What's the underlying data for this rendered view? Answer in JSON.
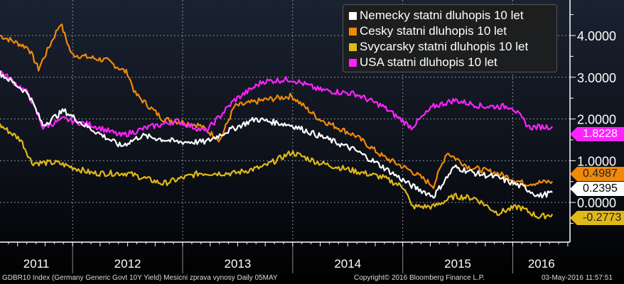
{
  "chart_data": {
    "type": "line",
    "title": "",
    "xlabel": "",
    "ylabel": "",
    "xlim": [
      2011.34,
      2016.52
    ],
    "ylim": [
      -0.95,
      4.85
    ],
    "grid": true,
    "legend_position": "top-right",
    "y_ticks": [
      "4.0000",
      "3.0000",
      "2.0000",
      "1.0000",
      "0.0000"
    ],
    "y_tick_values": [
      4,
      3,
      2,
      1,
      0
    ],
    "x_tick_labels": [
      "2011",
      "2012",
      "2013",
      "2014",
      "2015",
      "2016"
    ],
    "year_boundaries": [
      2012,
      2013,
      2014,
      2015,
      2016
    ],
    "series": [
      {
        "name": "Nemecky statni dluhopis 10 let",
        "color": "#ffffff",
        "last": "0.2395",
        "last_value": 0.2395,
        "points": [
          [
            2011.34,
            3.1
          ],
          [
            2011.6,
            2.6
          ],
          [
            2011.73,
            1.85
          ],
          [
            2011.92,
            2.2
          ],
          [
            2012.11,
            1.85
          ],
          [
            2012.44,
            1.35
          ],
          [
            2012.63,
            1.6
          ],
          [
            2012.95,
            1.45
          ],
          [
            2013.21,
            1.45
          ],
          [
            2013.4,
            1.7
          ],
          [
            2013.66,
            2.0
          ],
          [
            2013.99,
            1.85
          ],
          [
            2014.24,
            1.6
          ],
          [
            2014.57,
            1.25
          ],
          [
            2014.82,
            0.85
          ],
          [
            2015.08,
            0.4
          ],
          [
            2015.28,
            0.15
          ],
          [
            2015.47,
            0.85
          ],
          [
            2015.66,
            0.7
          ],
          [
            2015.86,
            0.6
          ],
          [
            2016.11,
            0.35
          ],
          [
            2016.24,
            0.15
          ],
          [
            2016.36,
            0.24
          ]
        ]
      },
      {
        "name": "Cesky statni dluhopis 10 let",
        "color": "#f0890a",
        "last": "0.4987",
        "last_value": 0.4987,
        "points": [
          [
            2011.34,
            4.0
          ],
          [
            2011.6,
            3.7
          ],
          [
            2011.69,
            3.2
          ],
          [
            2011.89,
            4.3
          ],
          [
            2011.99,
            3.55
          ],
          [
            2012.31,
            3.4
          ],
          [
            2012.5,
            3.1
          ],
          [
            2012.57,
            2.6
          ],
          [
            2012.82,
            2.0
          ],
          [
            2013.15,
            1.85
          ],
          [
            2013.34,
            1.5
          ],
          [
            2013.47,
            2.3
          ],
          [
            2013.73,
            2.45
          ],
          [
            2013.99,
            2.55
          ],
          [
            2014.24,
            2.0
          ],
          [
            2014.57,
            1.6
          ],
          [
            2014.82,
            1.1
          ],
          [
            2015.08,
            0.75
          ],
          [
            2015.28,
            0.4
          ],
          [
            2015.4,
            1.2
          ],
          [
            2015.6,
            0.85
          ],
          [
            2015.86,
            0.7
          ],
          [
            2016.11,
            0.45
          ],
          [
            2016.36,
            0.5
          ]
        ]
      },
      {
        "name": "Svycarsky statni dluhopis 10 let",
        "color": "#e0b818",
        "last": "-0.2773",
        "last_value": -0.2773,
        "points": [
          [
            2011.34,
            1.85
          ],
          [
            2011.53,
            1.5
          ],
          [
            2011.63,
            0.95
          ],
          [
            2011.86,
            0.95
          ],
          [
            2012.18,
            0.7
          ],
          [
            2012.5,
            0.7
          ],
          [
            2012.82,
            0.45
          ],
          [
            2013.15,
            0.7
          ],
          [
            2013.47,
            0.7
          ],
          [
            2013.73,
            0.85
          ],
          [
            2013.99,
            1.2
          ],
          [
            2014.24,
            0.95
          ],
          [
            2014.57,
            0.75
          ],
          [
            2014.82,
            0.6
          ],
          [
            2015.02,
            0.35
          ],
          [
            2015.08,
            -0.1
          ],
          [
            2015.28,
            -0.1
          ],
          [
            2015.47,
            0.15
          ],
          [
            2015.66,
            0.1
          ],
          [
            2015.86,
            -0.25
          ],
          [
            2016.05,
            -0.1
          ],
          [
            2016.24,
            -0.35
          ],
          [
            2016.36,
            -0.28
          ]
        ]
      },
      {
        "name": "USA statni dluhopis 10 let",
        "color": "#ff22ff",
        "last": "1.8228",
        "last_value": 1.8228,
        "points": [
          [
            2011.34,
            3.15
          ],
          [
            2011.6,
            2.6
          ],
          [
            2011.73,
            1.8
          ],
          [
            2011.92,
            2.0
          ],
          [
            2012.18,
            1.85
          ],
          [
            2012.44,
            1.6
          ],
          [
            2012.69,
            1.8
          ],
          [
            2012.95,
            1.95
          ],
          [
            2013.21,
            1.7
          ],
          [
            2013.47,
            2.45
          ],
          [
            2013.73,
            2.9
          ],
          [
            2013.99,
            2.95
          ],
          [
            2014.24,
            2.7
          ],
          [
            2014.57,
            2.6
          ],
          [
            2014.82,
            2.3
          ],
          [
            2015.08,
            1.8
          ],
          [
            2015.28,
            2.3
          ],
          [
            2015.47,
            2.45
          ],
          [
            2015.73,
            2.3
          ],
          [
            2015.99,
            2.3
          ],
          [
            2016.15,
            1.8
          ],
          [
            2016.36,
            1.82
          ]
        ]
      }
    ]
  },
  "footer": {
    "left": "GDBR10 Index (Germany Generic Govt 10Y Yield) Mesicni zprava vynosy  Daily 05MAY",
    "center": "Copyright© 2016 Bloomberg Finance L.P.",
    "right": "03-May-2016 11:57:51"
  }
}
